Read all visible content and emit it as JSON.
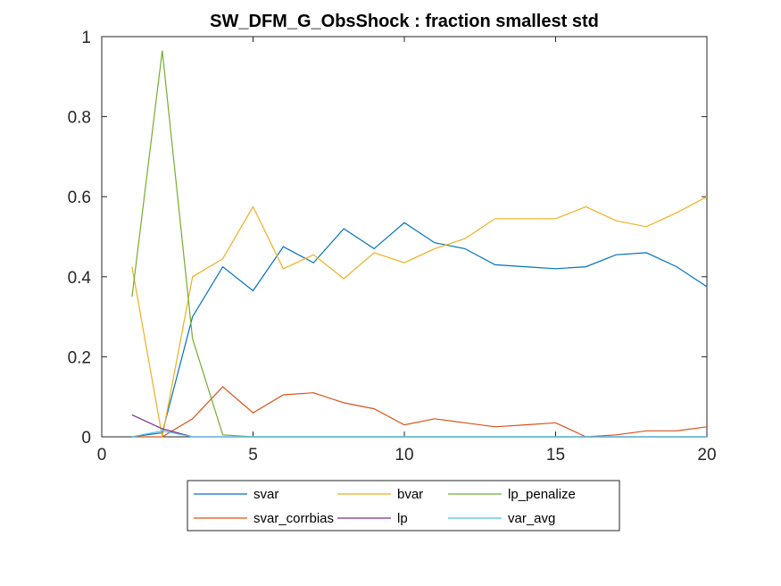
{
  "chart_data": {
    "type": "line",
    "title": "SW_DFM_G_ObsShock : fraction smallest std",
    "xlabel": "",
    "ylabel": "",
    "xlim": [
      0,
      20
    ],
    "ylim": [
      0,
      1
    ],
    "xticks": [
      0,
      5,
      10,
      15,
      20
    ],
    "yticks": [
      0,
      0.2,
      0.4,
      0.6,
      0.8,
      1
    ],
    "x_tick_labels": [
      "0",
      "5",
      "10",
      "15",
      "20"
    ],
    "y_tick_labels": [
      "0",
      "0.2",
      "0.4",
      "0.6",
      "0.8",
      "1"
    ],
    "grid": false,
    "legend_position": "bottom-outside",
    "x": [
      1,
      2,
      3,
      4,
      5,
      6,
      7,
      8,
      9,
      10,
      11,
      12,
      13,
      14,
      15,
      16,
      17,
      18,
      19,
      20
    ],
    "series": [
      {
        "name": "svar",
        "color": "#0072BD",
        "values": [
          0,
          0.01,
          0.3,
          0.425,
          0.365,
          0.475,
          0.435,
          0.52,
          0.47,
          0.535,
          0.485,
          0.47,
          0.43,
          0.425,
          0.42,
          0.425,
          0.455,
          0.46,
          0.425,
          0.375
        ]
      },
      {
        "name": "svar_corrbias",
        "color": "#D95319",
        "values": [
          0,
          0,
          0.045,
          0.125,
          0.06,
          0.105,
          0.11,
          0.085,
          0.07,
          0.03,
          0.045,
          0.035,
          0.025,
          0.03,
          0.035,
          0,
          0.005,
          0.015,
          0.015,
          0.025
        ]
      },
      {
        "name": "bvar",
        "color": "#EDB120",
        "values": [
          0.425,
          0,
          0.4,
          0.445,
          0.575,
          0.42,
          0.455,
          0.395,
          0.46,
          0.435,
          0.47,
          0.495,
          0.545,
          0.545,
          0.545,
          0.575,
          0.54,
          0.525,
          0.56,
          0.6
        ]
      },
      {
        "name": "lp",
        "color": "#7E2F8E",
        "values": [
          0.055,
          0.02,
          0,
          0,
          0,
          0,
          0,
          0,
          0,
          0,
          0,
          0,
          0,
          0,
          0,
          0,
          0,
          0,
          0,
          0
        ]
      },
      {
        "name": "lp_penalize",
        "color": "#77AC30",
        "values": [
          0.35,
          0.965,
          0.245,
          0.005,
          0,
          0,
          0,
          0,
          0,
          0,
          0,
          0,
          0,
          0,
          0,
          0,
          0,
          0,
          0,
          0
        ]
      },
      {
        "name": "var_avg",
        "color": "#4DBEEE",
        "values": [
          0,
          0.015,
          0,
          0,
          0,
          0,
          0,
          0,
          0,
          0,
          0,
          0,
          0,
          0,
          0,
          0,
          0,
          0,
          0,
          0
        ]
      }
    ],
    "legend_order": [
      "svar",
      "bvar",
      "lp_penalize",
      "svar_corrbias",
      "lp",
      "var_avg"
    ]
  }
}
